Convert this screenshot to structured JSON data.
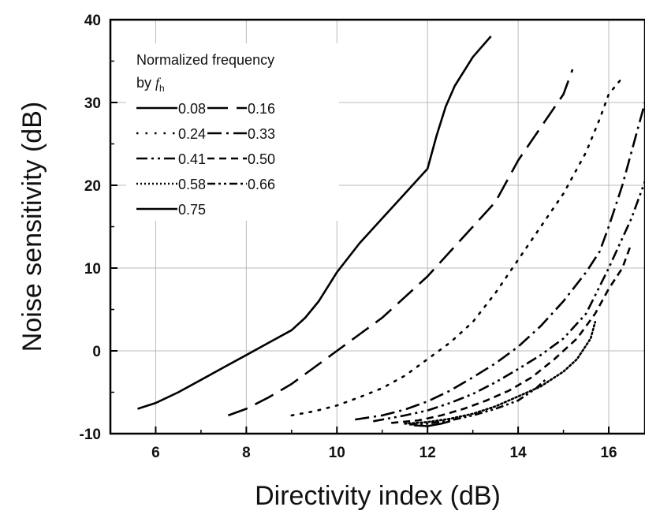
{
  "chart_data": {
    "type": "line",
    "xlabel": "Directivity index (dB)",
    "ylabel": "Noise sensitivity (dB)",
    "xlim": [
      5,
      16.8
    ],
    "ylim": [
      -10,
      40
    ],
    "xticks": [
      6,
      8,
      10,
      12,
      14,
      16
    ],
    "yticks": [
      -10,
      0,
      10,
      20,
      30,
      40
    ],
    "grid": true,
    "legend": {
      "placement": "top-left",
      "title_line1": "Normalized frequency",
      "title_line2_prefix": "by ",
      "title_symbol": "f",
      "title_subscript": "h"
    },
    "series": [
      {
        "name": "0.08",
        "dash": "solid",
        "x": [
          5.6,
          6.0,
          6.5,
          7.0,
          7.5,
          8.0,
          8.5,
          9.0,
          9.3,
          9.6,
          10.0,
          10.5,
          11.0,
          11.5,
          12.0,
          12.2,
          12.4,
          12.6,
          13.0,
          13.4
        ],
        "y": [
          -7,
          -6.3,
          -5,
          -3.5,
          -2,
          -0.5,
          1,
          2.5,
          4,
          6,
          9.5,
          13,
          16,
          19,
          22,
          26,
          29.5,
          32,
          35.5,
          38
        ]
      },
      {
        "name": "0.16",
        "dash": "longdash",
        "x": [
          7.6,
          8.0,
          8.5,
          9.0,
          9.5,
          10.0,
          10.5,
          11.0,
          11.5,
          12.0,
          12.5,
          13.0,
          13.5,
          14.0,
          14.5,
          15.0,
          15.2
        ],
        "y": [
          -7.8,
          -7,
          -5.6,
          -4,
          -2,
          0,
          2,
          4,
          6.5,
          9,
          12,
          15,
          18,
          23,
          27,
          31,
          34
        ]
      },
      {
        "name": "0.24",
        "dash": "dots",
        "x": [
          9.0,
          9.5,
          10.0,
          10.5,
          11.0,
          11.5,
          12.0,
          12.5,
          13.0,
          13.5,
          14.0,
          14.5,
          15.0,
          15.5,
          15.8,
          16.0,
          16.3
        ],
        "y": [
          -7.8,
          -7.3,
          -6.6,
          -5.6,
          -4.5,
          -3,
          -1,
          1,
          3.5,
          7,
          11,
          15,
          19,
          24,
          28,
          31,
          33
        ]
      },
      {
        "name": "0.33",
        "dash": "dashdot",
        "x": [
          10.4,
          11.0,
          11.5,
          12.0,
          12.5,
          13.0,
          13.5,
          14.0,
          14.5,
          15.0,
          15.5,
          15.8,
          16.0,
          16.3,
          16.6,
          16.8
        ],
        "y": [
          -8.3,
          -7.8,
          -7.1,
          -6.1,
          -4.8,
          -3.2,
          -1.5,
          0.5,
          3,
          6,
          9.5,
          12,
          15,
          20,
          26,
          30
        ]
      },
      {
        "name": "0.41",
        "dash": "dashdotdot",
        "x": [
          10.8,
          11.5,
          12.0,
          12.5,
          13.0,
          13.5,
          14.0,
          14.5,
          15.0,
          15.5,
          16.0,
          16.5,
          16.8
        ],
        "y": [
          -8.5,
          -7.8,
          -7.2,
          -6.3,
          -5.2,
          -3.8,
          -2.2,
          -0.5,
          1.5,
          4.5,
          10,
          16,
          20.5
        ]
      },
      {
        "name": "0.50",
        "dash": "shortdash",
        "x": [
          11.2,
          11.8,
          12.3,
          12.8,
          13.3,
          13.8,
          14.3,
          14.8,
          15.3,
          15.7,
          16.0,
          16.3,
          16.5
        ],
        "y": [
          -8.7,
          -8.4,
          -7.8,
          -7,
          -6,
          -4.8,
          -3.2,
          -1,
          1.5,
          4.5,
          7.5,
          10,
          13
        ]
      },
      {
        "name": "0.58",
        "dash": "dense",
        "x": [
          11.5,
          12.0,
          12.5,
          13.0,
          13.5,
          14.0,
          14.5,
          15.0,
          15.3,
          15.6,
          15.7
        ],
        "y": [
          -8.8,
          -8.6,
          -8.2,
          -7.6,
          -6.7,
          -5.5,
          -4.3,
          -2.5,
          -1,
          1.5,
          3.5
        ]
      },
      {
        "name": "0.66",
        "dash": "dashdotdot2",
        "x": [
          11.6,
          12.0,
          12.5,
          13.0,
          13.5,
          14.0,
          14.4,
          14.5,
          14.6
        ],
        "y": [
          -8.9,
          -8.8,
          -8.4,
          -7.8,
          -7,
          -6,
          -4.5,
          -4,
          -3.5
        ]
      },
      {
        "name": "0.75",
        "dash": "solid",
        "x": [
          11.7,
          12.0,
          12.3,
          12.5
        ],
        "y": [
          -9.0,
          -9.1,
          -8.8,
          -8.5
        ]
      }
    ]
  }
}
